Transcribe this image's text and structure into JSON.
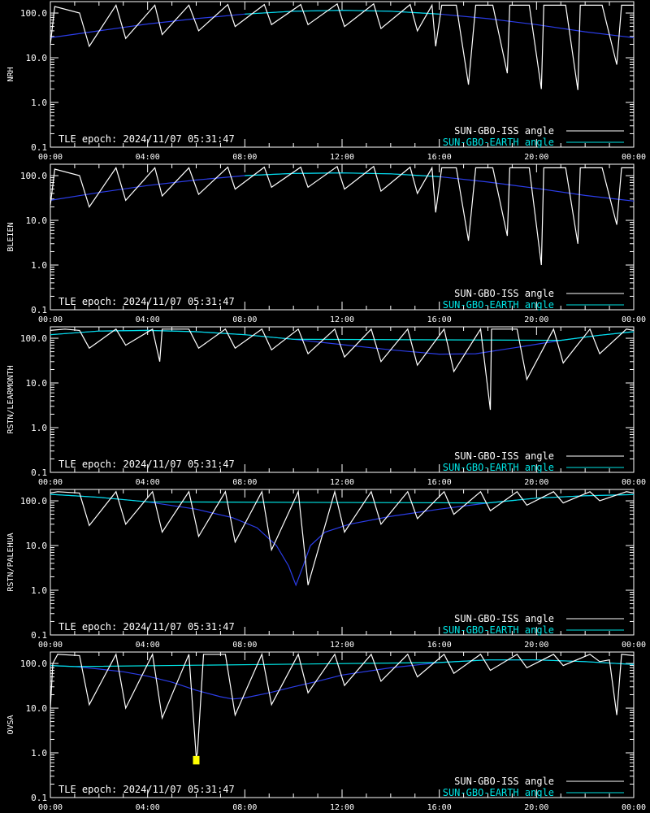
{
  "chart_data": [
    {
      "type": "line",
      "ylabel": "NRH",
      "yscale": "log",
      "ylim": [
        0.1,
        180
      ],
      "xlim": [
        0,
        24
      ],
      "yticks": [
        "0.1",
        "1.0",
        "10.0",
        "100.0"
      ],
      "xticks": [
        "00:00",
        "04:00",
        "08:00",
        "12:00",
        "16:00",
        "20:00",
        "00:00"
      ],
      "epoch_text": "TLE epoch: 2024/11/07 05:31:47",
      "legend": [
        {
          "label": "SUN-GBO-ISS angle",
          "color": "#ffffff"
        },
        {
          "label": "SUN-GBO-EARTH angle",
          "color": "#00e5e5"
        }
      ],
      "series": [
        {
          "name": "SUN-GBO-EARTH angle",
          "x": [
            0,
            2,
            4,
            6,
            8,
            10,
            12,
            14,
            16,
            18,
            20,
            22,
            24
          ],
          "values": [
            28,
            40,
            57,
            75,
            95,
            110,
            115,
            110,
            95,
            75,
            55,
            38,
            28
          ]
        },
        {
          "name": "SUN-GBO-ISS angle",
          "x": [
            0,
            0.18,
            1.2,
            1.6,
            2.7,
            3.1,
            4.3,
            4.6,
            5.7,
            6.1,
            7.3,
            7.6,
            8.8,
            9.1,
            10.3,
            10.6,
            11.8,
            12.1,
            13.3,
            13.6,
            14.8,
            15.1,
            15.7,
            15.85,
            16.1,
            16.7,
            17.2,
            17.5,
            18.2,
            18.8,
            18.9,
            19.7,
            20.2,
            20.3,
            21.2,
            21.7,
            21.8,
            22.7,
            23.3,
            23.5,
            24
          ],
          "values": [
            20,
            140,
            100,
            18,
            150,
            27,
            150,
            33,
            150,
            40,
            155,
            50,
            155,
            55,
            155,
            55,
            160,
            50,
            160,
            45,
            155,
            40,
            150,
            18,
            150,
            150,
            2.5,
            150,
            150,
            4.5,
            150,
            150,
            2.0,
            150,
            150,
            1.9,
            150,
            150,
            7,
            150,
            150
          ]
        }
      ]
    },
    {
      "type": "line",
      "ylabel": "BLEIEN",
      "yscale": "log",
      "ylim": [
        0.1,
        180
      ],
      "xlim": [
        0,
        24
      ],
      "yticks": [
        "0.1",
        "1.0",
        "10.0",
        "100.0"
      ],
      "xticks": [
        "00:00",
        "04:00",
        "08:00",
        "12:00",
        "16:00",
        "20:00",
        "00:00"
      ],
      "epoch_text": "TLE epoch: 2024/11/07 05:31:47",
      "legend": [
        {
          "label": "SUN-GBO-ISS angle",
          "color": "#ffffff"
        },
        {
          "label": "SUN-GBO-EARTH angle",
          "color": "#00e5e5"
        }
      ],
      "series": [
        {
          "name": "SUN-GBO-EARTH angle",
          "x": [
            0,
            2,
            4,
            6,
            8,
            10,
            12,
            14,
            16,
            18,
            20,
            22,
            24
          ],
          "values": [
            28,
            42,
            60,
            80,
            100,
            112,
            115,
            110,
            95,
            72,
            52,
            36,
            27
          ]
        },
        {
          "name": "SUN-GBO-ISS angle",
          "x": [
            0,
            0.18,
            1.2,
            1.6,
            2.7,
            3.1,
            4.3,
            4.6,
            5.7,
            6.1,
            7.3,
            7.6,
            8.8,
            9.1,
            10.3,
            10.6,
            11.8,
            12.1,
            13.3,
            13.6,
            14.8,
            15.1,
            15.7,
            15.85,
            16.1,
            16.7,
            17.2,
            17.5,
            18.2,
            18.8,
            18.9,
            19.7,
            20.2,
            20.3,
            21.2,
            21.7,
            21.8,
            22.7,
            23.3,
            23.5,
            24
          ],
          "values": [
            22,
            140,
            100,
            20,
            150,
            28,
            150,
            35,
            150,
            38,
            155,
            50,
            155,
            55,
            155,
            55,
            160,
            50,
            160,
            45,
            155,
            40,
            150,
            15,
            150,
            150,
            3.5,
            150,
            150,
            4.5,
            150,
            150,
            1.0,
            150,
            150,
            3.0,
            150,
            150,
            8,
            150,
            150
          ]
        }
      ]
    },
    {
      "type": "line",
      "ylabel": "RSTN/LEARMONTH",
      "yscale": "log",
      "ylim": [
        0.1,
        180
      ],
      "xlim": [
        0,
        24
      ],
      "yticks": [
        "0.1",
        "1.0",
        "10.0",
        "100.0"
      ],
      "xticks": [
        "00:00",
        "04:00",
        "08:00",
        "12:00",
        "16:00",
        "20:00",
        "00:00"
      ],
      "epoch_text": "TLE epoch: 2024/11/07 05:31:47",
      "legend": [
        {
          "label": "SUN-GBO-ISS angle",
          "color": "#ffffff"
        },
        {
          "label": "SUN-GBO-EARTH angle",
          "color": "#00e5e5"
        }
      ],
      "series": [
        {
          "name": "SUN-GBO-EARTH angle",
          "x": [
            0,
            2,
            4,
            6,
            8,
            10,
            12,
            14,
            16,
            17.5,
            19,
            21,
            22.5,
            24
          ],
          "values": [
            120,
            145,
            150,
            140,
            120,
            95,
            72,
            55,
            44,
            45,
            60,
            90,
            115,
            140
          ]
        },
        {
          "name": "SUN-GBO-ISS angle",
          "x": [
            0,
            0.6,
            1.2,
            1.6,
            2.7,
            3.1,
            4.2,
            4.5,
            4.6,
            5.7,
            6.1,
            7.2,
            7.6,
            8.7,
            9.1,
            10.2,
            10.6,
            11.7,
            12.1,
            13.2,
            13.6,
            14.7,
            15.1,
            16.2,
            16.6,
            17.7,
            18.1,
            18.15,
            19.2,
            19.6,
            20.7,
            21.1,
            22.2,
            22.6,
            23.7,
            24
          ],
          "values": [
            150,
            160,
            150,
            60,
            160,
            70,
            160,
            30,
            160,
            160,
            60,
            160,
            60,
            160,
            55,
            160,
            45,
            160,
            38,
            160,
            30,
            160,
            25,
            160,
            18,
            160,
            2.5,
            160,
            160,
            12,
            160,
            28,
            160,
            45,
            160,
            150
          ]
        }
      ]
    },
    {
      "type": "line",
      "ylabel": "RSTN/PALEHUA",
      "yscale": "log",
      "ylim": [
        0.1,
        180
      ],
      "xlim": [
        0,
        24
      ],
      "yticks": [
        "0.1",
        "1.0",
        "10.0",
        "100.0"
      ],
      "xticks": [
        "00:00",
        "04:00",
        "08:00",
        "12:00",
        "16:00",
        "20:00",
        "00:00"
      ],
      "epoch_text": "TLE epoch: 2024/11/07 05:31:47",
      "legend": [
        {
          "label": "SUN-GBO-ISS angle",
          "color": "#ffffff"
        },
        {
          "label": "SUN-GBO-EARTH angle",
          "color": "#00e5e5"
        }
      ],
      "series": [
        {
          "name": "SUN-GBO-EARTH angle",
          "x": [
            0,
            2,
            4,
            6,
            7.5,
            8.5,
            9.3,
            9.8,
            10.1,
            10.4,
            10.7,
            11.3,
            12.3,
            14,
            16,
            18,
            20,
            22,
            24
          ],
          "values": [
            140,
            120,
            95,
            65,
            42,
            25,
            10,
            3.5,
            1.3,
            3.5,
            10,
            20,
            30,
            45,
            65,
            90,
            115,
            130,
            138
          ]
        },
        {
          "name": "SUN-GBO-ISS angle",
          "x": [
            0,
            0.3,
            1.2,
            1.6,
            2.7,
            3.1,
            4.2,
            4.6,
            5.7,
            6.1,
            7.2,
            7.6,
            8.7,
            9.1,
            10.2,
            10.6,
            11.7,
            12.1,
            13.2,
            13.6,
            14.7,
            15.1,
            16.2,
            16.6,
            17.7,
            18.1,
            19.2,
            19.6,
            20.7,
            21.1,
            22.2,
            22.6,
            23.7,
            24
          ],
          "values": [
            150,
            160,
            150,
            28,
            160,
            30,
            160,
            20,
            160,
            16,
            160,
            12,
            160,
            8,
            160,
            1.3,
            160,
            20,
            160,
            30,
            160,
            40,
            160,
            50,
            160,
            60,
            160,
            80,
            160,
            90,
            160,
            100,
            160,
            150
          ]
        }
      ]
    },
    {
      "type": "line",
      "ylabel": "OVSA",
      "yscale": "log",
      "ylim": [
        0.1,
        180
      ],
      "xlim": [
        0,
        24
      ],
      "yticks": [
        "0.1",
        "1.0",
        "10.0",
        "100.0"
      ],
      "xticks": [
        "00:00",
        "04:00",
        "08:00",
        "12:00",
        "16:00",
        "20:00",
        "00:00"
      ],
      "epoch_text": "TLE epoch: 2024/11/07 05:31:47",
      "legend": [
        {
          "label": "SUN-GBO-ISS angle",
          "color": "#ffffff"
        },
        {
          "label": "SUN-GBO-EARTH angle",
          "color": "#00e5e5"
        }
      ],
      "marker": {
        "x": 6.0,
        "y_low": 0.55,
        "y_high": 0.85,
        "color": "#ffff00"
      },
      "series": [
        {
          "name": "SUN-GBO-EARTH angle",
          "x": [
            0,
            1,
            2,
            3,
            4,
            5,
            6,
            7,
            7.5,
            8,
            9,
            10,
            11,
            12,
            14,
            16,
            18,
            20,
            22,
            24
          ],
          "values": [
            90,
            85,
            75,
            65,
            52,
            38,
            25,
            18,
            16,
            17,
            22,
            30,
            40,
            55,
            80,
            105,
            120,
            120,
            110,
            95
          ]
        },
        {
          "name": "SUN-GBO-ISS angle",
          "x": [
            0,
            0.1,
            0.3,
            1.2,
            1.6,
            2.7,
            3.1,
            4.2,
            4.6,
            5.7,
            6.0,
            6.05,
            6.3,
            6.4,
            7.2,
            7.6,
            8.7,
            9.1,
            10.2,
            10.6,
            11.7,
            12.1,
            13.2,
            13.6,
            14.7,
            15.1,
            16.2,
            16.6,
            17.7,
            18.1,
            19.2,
            19.6,
            20.7,
            21.1,
            22.2,
            22.6,
            23.0,
            23.3,
            23.5,
            24
          ],
          "values": [
            10,
            100,
            160,
            150,
            12,
            160,
            10,
            160,
            6,
            160,
            0.8,
            1.0,
            160,
            160,
            160,
            7,
            160,
            12,
            160,
            22,
            160,
            32,
            160,
            40,
            160,
            50,
            160,
            60,
            160,
            70,
            160,
            80,
            160,
            90,
            160,
            110,
            120,
            7,
            160,
            150
          ]
        }
      ]
    }
  ]
}
